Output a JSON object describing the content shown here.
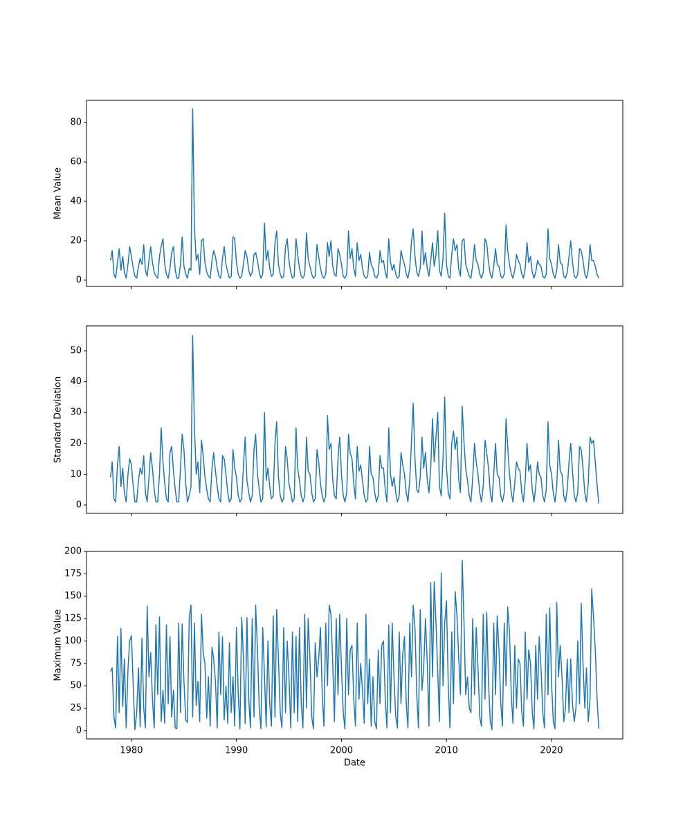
{
  "chart_data": {
    "type": "line",
    "xlabel": "Date",
    "color": "#1f77b4",
    "xlim": [
      1975.72,
      2026.79
    ],
    "xticks": [
      1980,
      1990,
      2000,
      2010,
      2020
    ],
    "x": [
      1978,
      1978.17,
      1978.33,
      1978.5,
      1978.67,
      1978.83,
      1979,
      1979.17,
      1979.33,
      1979.5,
      1979.67,
      1979.83,
      1980,
      1980.17,
      1980.33,
      1980.5,
      1980.67,
      1980.83,
      1981,
      1981.17,
      1981.33,
      1981.5,
      1981.67,
      1981.83,
      1982,
      1982.17,
      1982.33,
      1982.5,
      1982.67,
      1982.83,
      1983,
      1983.17,
      1983.33,
      1983.5,
      1983.67,
      1983.83,
      1984,
      1984.17,
      1984.33,
      1984.5,
      1984.67,
      1984.83,
      1985,
      1985.17,
      1985.33,
      1985.5,
      1985.67,
      1985.83,
      1986,
      1986.17,
      1986.33,
      1986.5,
      1986.67,
      1986.83,
      1987,
      1987.17,
      1987.33,
      1987.5,
      1987.67,
      1987.83,
      1988,
      1988.17,
      1988.33,
      1988.5,
      1988.67,
      1988.83,
      1989,
      1989.17,
      1989.33,
      1989.5,
      1989.67,
      1989.83,
      1990,
      1990.17,
      1990.33,
      1990.5,
      1990.67,
      1990.83,
      1991,
      1991.17,
      1991.33,
      1991.5,
      1991.67,
      1991.83,
      1992,
      1992.17,
      1992.33,
      1992.5,
      1992.67,
      1992.83,
      1993,
      1993.17,
      1993.33,
      1993.5,
      1993.67,
      1993.83,
      1994,
      1994.17,
      1994.33,
      1994.5,
      1994.67,
      1994.83,
      1995,
      1995.17,
      1995.33,
      1995.5,
      1995.67,
      1995.83,
      1996,
      1996.17,
      1996.33,
      1996.5,
      1996.67,
      1996.83,
      1997,
      1997.17,
      1997.33,
      1997.5,
      1997.67,
      1997.83,
      1998,
      1998.17,
      1998.33,
      1998.5,
      1998.67,
      1998.83,
      1999,
      1999.17,
      1999.33,
      1999.5,
      1999.67,
      1999.83,
      2000,
      2000.17,
      2000.33,
      2000.5,
      2000.67,
      2000.83,
      2001,
      2001.17,
      2001.33,
      2001.5,
      2001.67,
      2001.83,
      2002,
      2002.17,
      2002.33,
      2002.5,
      2002.67,
      2002.83,
      2003,
      2003.17,
      2003.33,
      2003.5,
      2003.67,
      2003.83,
      2004,
      2004.17,
      2004.33,
      2004.5,
      2004.67,
      2004.83,
      2005,
      2005.17,
      2005.33,
      2005.5,
      2005.67,
      2005.83,
      2006,
      2006.17,
      2006.33,
      2006.5,
      2006.67,
      2006.83,
      2007,
      2007.17,
      2007.33,
      2007.5,
      2007.67,
      2007.83,
      2008,
      2008.17,
      2008.33,
      2008.5,
      2008.67,
      2008.83,
      2009,
      2009.17,
      2009.33,
      2009.5,
      2009.67,
      2009.83,
      2010,
      2010.17,
      2010.33,
      2010.5,
      2010.67,
      2010.83,
      2011,
      2011.17,
      2011.33,
      2011.5,
      2011.67,
      2011.83,
      2012,
      2012.17,
      2012.33,
      2012.5,
      2012.67,
      2012.83,
      2013,
      2013.17,
      2013.33,
      2013.5,
      2013.67,
      2013.83,
      2014,
      2014.17,
      2014.33,
      2014.5,
      2014.67,
      2014.83,
      2015,
      2015.17,
      2015.33,
      2015.5,
      2015.67,
      2015.83,
      2016,
      2016.17,
      2016.33,
      2016.5,
      2016.67,
      2016.83,
      2017,
      2017.17,
      2017.33,
      2017.5,
      2017.67,
      2017.83,
      2018,
      2018.17,
      2018.33,
      2018.5,
      2018.67,
      2018.83,
      2019,
      2019.17,
      2019.33,
      2019.5,
      2019.67,
      2019.83,
      2020,
      2020.17,
      2020.33,
      2020.5,
      2020.67,
      2020.83,
      2021,
      2021.17,
      2021.33,
      2021.5,
      2021.67,
      2021.83,
      2022,
      2022.17,
      2022.33,
      2022.5,
      2022.67,
      2022.83,
      2023,
      2023.17,
      2023.33,
      2023.5,
      2023.67,
      2023.83,
      2024,
      2024.17,
      2024.33,
      2024.5
    ],
    "panels": [
      {
        "ylabel": "Mean Value",
        "ylim": [
          -3.2,
          91.3
        ],
        "yticks": [
          0,
          20,
          40,
          60,
          80
        ],
        "values": [
          10,
          15,
          3,
          1,
          9,
          16,
          5,
          12,
          4,
          1,
          8,
          17,
          12,
          6,
          2,
          1,
          7,
          11,
          8,
          18,
          5,
          2,
          10,
          17,
          9,
          4,
          2,
          1,
          12,
          17,
          21,
          8,
          3,
          1,
          6,
          14,
          17,
          5,
          1,
          1,
          8,
          22,
          7,
          3,
          1,
          6,
          5,
          87,
          27,
          10,
          13,
          3,
          20,
          21,
          9,
          4,
          2,
          1,
          10,
          15,
          12,
          6,
          2,
          1,
          11,
          17,
          8,
          4,
          1,
          2,
          22,
          21,
          9,
          3,
          1,
          2,
          8,
          15,
          12,
          5,
          2,
          4,
          13,
          14,
          10,
          4,
          1,
          3,
          29,
          10,
          15,
          6,
          2,
          3,
          19,
          25,
          8,
          3,
          1,
          2,
          17,
          21,
          10,
          4,
          1,
          2,
          21,
          13,
          6,
          2,
          1,
          3,
          24,
          11,
          7,
          3,
          1,
          2,
          18,
          12,
          6,
          2,
          1,
          3,
          19,
          12,
          20,
          7,
          3,
          2,
          16,
          13,
          8,
          2,
          1,
          3,
          25,
          11,
          16,
          6,
          2,
          19,
          10,
          13,
          6,
          2,
          1,
          2,
          14,
          8,
          6,
          2,
          1,
          3,
          15,
          9,
          10,
          4,
          1,
          21,
          9,
          5,
          8,
          3,
          1,
          2,
          15,
          11,
          8,
          3,
          1,
          6,
          20,
          26,
          12,
          4,
          2,
          6,
          25,
          8,
          14,
          6,
          2,
          10,
          19,
          7,
          13,
          25,
          5,
          2,
          11,
          34,
          8,
          2,
          1,
          13,
          21,
          15,
          18,
          5,
          2,
          20,
          21,
          8,
          5,
          2,
          1,
          8,
          18,
          10,
          8,
          3,
          1,
          4,
          21,
          19,
          9,
          3,
          1,
          7,
          16,
          8,
          7,
          2,
          1,
          3,
          28,
          15,
          8,
          3,
          1,
          5,
          13,
          10,
          8,
          3,
          1,
          6,
          19,
          9,
          12,
          4,
          1,
          4,
          10,
          8,
          7,
          2,
          1,
          3,
          26,
          11,
          8,
          3,
          1,
          5,
          18,
          9,
          8,
          2,
          1,
          4,
          12,
          20,
          9,
          2,
          1,
          3,
          16,
          15,
          10,
          3,
          1,
          5,
          18,
          10,
          10,
          7,
          3,
          1
        ]
      },
      {
        "ylabel": "Standard Deviation",
        "ylim": [
          -2.7,
          58.1
        ],
        "yticks": [
          0,
          10,
          20,
          30,
          40,
          50
        ],
        "values": [
          9,
          14,
          2,
          1,
          13,
          19,
          6,
          12,
          4,
          1,
          10,
          15,
          13,
          6,
          1,
          1,
          8,
          12,
          10,
          16,
          4,
          1,
          9,
          17,
          12,
          5,
          1,
          1,
          10,
          25,
          14,
          7,
          2,
          1,
          17,
          19,
          11,
          5,
          1,
          1,
          12,
          23,
          18,
          7,
          1,
          3,
          6,
          55,
          25,
          10,
          14,
          4,
          21,
          16,
          9,
          5,
          2,
          1,
          12,
          17,
          11,
          6,
          2,
          1,
          16,
          15,
          10,
          4,
          1,
          2,
          18,
          12,
          9,
          3,
          1,
          2,
          13,
          22,
          8,
          4,
          1,
          3,
          18,
          23,
          10,
          5,
          1,
          2,
          30,
          8,
          12,
          6,
          2,
          3,
          20,
          27,
          9,
          3,
          1,
          2,
          19,
          15,
          7,
          4,
          1,
          2,
          25,
          12,
          8,
          3,
          1,
          3,
          22,
          11,
          10,
          4,
          1,
          2,
          18,
          14,
          7,
          3,
          1,
          3,
          29,
          18,
          20,
          8,
          3,
          2,
          15,
          22,
          10,
          3,
          1,
          4,
          23,
          17,
          15,
          7,
          2,
          19,
          11,
          13,
          8,
          3,
          1,
          2,
          19,
          10,
          9,
          4,
          1,
          3,
          16,
          12,
          12,
          5,
          1,
          25,
          10,
          6,
          9,
          4,
          1,
          3,
          17,
          13,
          10,
          4,
          1,
          8,
          21,
          33,
          15,
          5,
          4,
          9,
          22,
          12,
          17,
          8,
          4,
          12,
          28,
          14,
          22,
          30,
          6,
          3,
          15,
          35,
          12,
          4,
          2,
          20,
          24,
          18,
          22,
          8,
          4,
          32,
          20,
          12,
          8,
          3,
          1,
          9,
          20,
          14,
          10,
          4,
          1,
          6,
          21,
          17,
          12,
          4,
          1,
          10,
          20,
          10,
          9,
          3,
          1,
          4,
          28,
          19,
          10,
          4,
          1,
          7,
          14,
          12,
          11,
          4,
          1,
          8,
          20,
          11,
          13,
          5,
          1,
          6,
          14,
          10,
          9,
          3,
          1,
          5,
          27,
          13,
          10,
          4,
          1,
          6,
          21,
          11,
          10,
          3,
          1,
          5,
          14,
          20,
          11,
          3,
          1,
          4,
          19,
          18,
          12,
          4,
          1,
          7,
          22,
          20,
          21,
          14,
          7,
          0.5
        ]
      },
      {
        "ylabel": "Maximum Value",
        "ylim": [
          -9.3,
          200
        ],
        "yticks": [
          0,
          25,
          50,
          75,
          100,
          125,
          150,
          175,
          200
        ],
        "values": [
          66,
          70,
          15,
          3,
          105,
          20,
          114,
          27,
          80,
          3,
          68,
          100,
          106,
          50,
          1,
          20,
          70,
          4,
          103,
          25,
          3,
          139,
          60,
          87,
          35,
          3,
          118,
          40,
          127,
          10,
          45,
          8,
          118,
          30,
          105,
          15,
          45,
          3,
          2,
          120,
          20,
          119,
          55,
          12,
          9,
          125,
          140,
          15,
          120,
          28,
          55,
          10,
          130,
          87,
          75,
          14,
          60,
          5,
          93,
          80,
          55,
          3,
          110,
          40,
          105,
          12,
          50,
          8,
          98,
          20,
          60,
          5,
          115,
          40,
          2,
          126,
          80,
          8,
          126,
          35,
          3,
          125,
          15,
          140,
          90,
          25,
          2,
          115,
          60,
          4,
          100,
          30,
          5,
          128,
          15,
          135,
          80,
          20,
          3,
          115,
          20,
          100,
          60,
          3,
          110,
          20,
          105,
          10,
          115,
          30,
          3,
          130,
          25,
          125,
          80,
          15,
          2,
          98,
          60,
          80,
          115,
          40,
          5,
          120,
          50,
          140,
          130,
          75,
          10,
          125,
          40,
          130,
          70,
          20,
          2,
          125,
          40,
          90,
          95,
          35,
          5,
          120,
          35,
          75,
          45,
          8,
          130,
          30,
          80,
          5,
          60,
          10,
          2,
          90,
          30,
          95,
          100,
          35,
          3,
          118,
          20,
          120,
          60,
          15,
          3,
          110,
          30,
          85,
          105,
          30,
          3,
          120,
          60,
          140,
          115,
          40,
          3,
          135,
          45,
          70,
          125,
          75,
          5,
          165,
          60,
          166,
          120,
          65,
          10,
          176,
          50,
          120,
          145,
          50,
          3,
          110,
          30,
          155,
          128,
          80,
          40,
          190,
          120,
          40,
          60,
          25,
          20,
          125,
          40,
          115,
          70,
          15,
          5,
          130,
          35,
          132,
          55,
          10,
          1,
          120,
          40,
          128,
          90,
          30,
          5,
          120,
          50,
          138,
          110,
          40,
          8,
          95,
          25,
          80,
          75,
          20,
          5,
          110,
          35,
          90,
          75,
          20,
          2,
          95,
          35,
          105,
          70,
          20,
          3,
          130,
          40,
          137,
          55,
          10,
          2,
          143,
          60,
          95,
          60,
          10,
          25,
          80,
          20,
          80,
          30,
          10,
          25,
          100,
          30,
          142,
          75,
          25,
          70,
          10,
          35,
          158,
          127,
          90,
          38,
          2
        ]
      }
    ]
  }
}
